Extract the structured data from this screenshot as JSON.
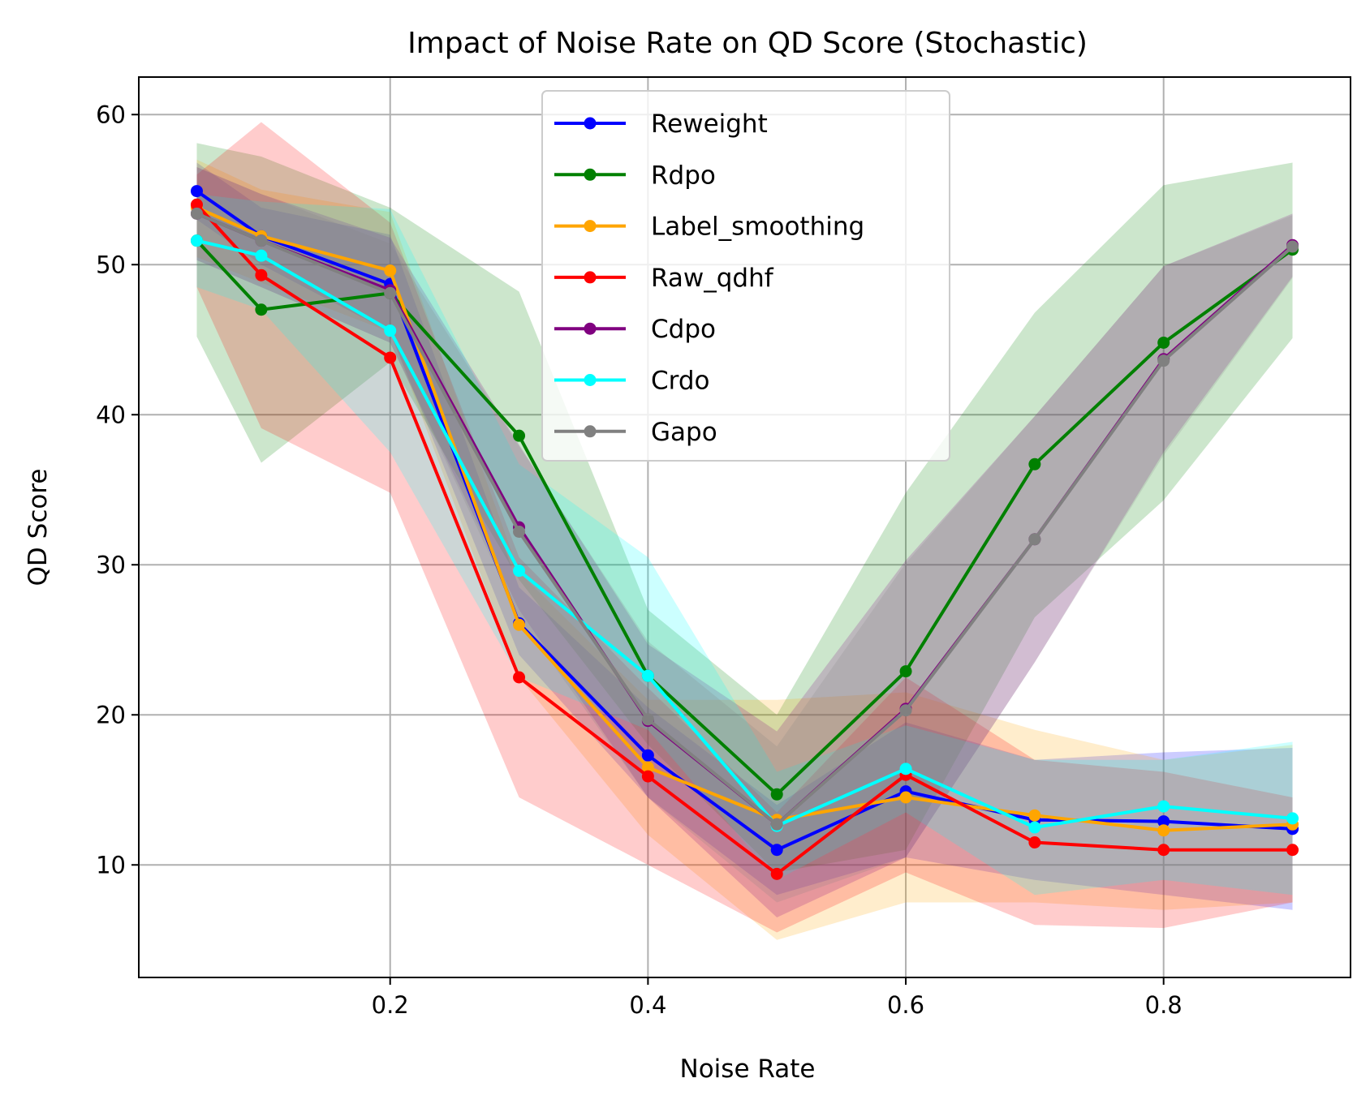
{
  "chart_data": {
    "type": "line",
    "title": "Impact of Noise Rate on QD Score (Stochastic)",
    "xlabel": "Noise Rate",
    "ylabel": "QD Score",
    "xlim": [
      0.005,
      0.945
    ],
    "ylim": [
      2.5,
      62.5
    ],
    "xticks": [
      0.2,
      0.4,
      0.6,
      0.8
    ],
    "xtick_labels": [
      "0.2",
      "0.4",
      "0.6",
      "0.8"
    ],
    "yticks": [
      10,
      20,
      30,
      40,
      50,
      60
    ],
    "ytick_labels": [
      "10",
      "20",
      "30",
      "40",
      "50",
      "60"
    ],
    "grid": true,
    "legend_position": "top-center",
    "x": [
      0.05,
      0.1,
      0.2,
      0.3,
      0.4,
      0.5,
      0.6,
      0.7,
      0.8,
      0.9
    ],
    "series": [
      {
        "name": "Reweight",
        "color": "#0000ff",
        "values": [
          54.9,
          51.9,
          48.7,
          26.1,
          17.3,
          11.0,
          14.9,
          13.0,
          12.9,
          12.4
        ],
        "lower": [
          53.0,
          50.0,
          45.5,
          24.0,
          14.5,
          8.0,
          10.5,
          9.0,
          8.0,
          7.0
        ],
        "upper": [
          56.8,
          53.8,
          52.0,
          28.5,
          20.5,
          14.0,
          19.5,
          17.0,
          17.5,
          17.8
        ]
      },
      {
        "name": "Rdpo",
        "color": "#008000",
        "values": [
          51.6,
          47.0,
          48.1,
          38.6,
          22.6,
          14.7,
          22.9,
          36.7,
          44.8,
          51.0
        ],
        "lower": [
          45.2,
          36.8,
          43.5,
          29.0,
          18.0,
          9.5,
          11.0,
          26.5,
          34.3,
          45.1
        ],
        "upper": [
          58.1,
          57.2,
          53.8,
          48.2,
          27.0,
          20.0,
          34.8,
          46.8,
          55.3,
          56.8
        ]
      },
      {
        "name": "Label_smoothing",
        "color": "#ffa500",
        "values": [
          53.8,
          51.9,
          49.6,
          26.0,
          16.5,
          13.0,
          14.5,
          13.3,
          12.3,
          12.7
        ],
        "lower": [
          50.5,
          48.8,
          45.5,
          22.5,
          12.0,
          5.0,
          7.5,
          7.5,
          7.0,
          7.5
        ],
        "upper": [
          57.0,
          55.0,
          53.5,
          29.5,
          21.0,
          21.0,
          21.5,
          19.0,
          17.0,
          18.0
        ]
      },
      {
        "name": "Raw_qdhf",
        "color": "#ff0000",
        "values": [
          54.0,
          49.3,
          43.8,
          22.5,
          15.9,
          9.4,
          16.0,
          11.5,
          11.0,
          11.0
        ],
        "lower": [
          48.5,
          39.1,
          34.8,
          14.5,
          10.0,
          5.5,
          9.5,
          6.0,
          5.8,
          7.5
        ],
        "upper": [
          56.0,
          59.5,
          52.8,
          30.5,
          21.8,
          13.5,
          22.5,
          17.0,
          16.2,
          14.5
        ]
      },
      {
        "name": "Cdpo",
        "color": "#800080",
        "values": [
          53.4,
          51.6,
          48.3,
          32.5,
          19.6,
          12.7,
          20.4,
          31.7,
          43.7,
          51.3
        ],
        "lower": [
          50.3,
          48.5,
          44.8,
          27.0,
          14.5,
          6.5,
          10.5,
          23.5,
          37.5,
          49.2
        ],
        "upper": [
          56.5,
          54.7,
          51.8,
          38.0,
          24.7,
          18.9,
          30.3,
          39.9,
          49.9,
          53.4
        ]
      },
      {
        "name": "Crdo",
        "color": "#00ffff",
        "values": [
          51.6,
          50.6,
          45.6,
          29.6,
          22.6,
          12.6,
          16.4,
          12.5,
          13.9,
          13.1
        ],
        "lower": [
          48.5,
          47.0,
          37.5,
          22.5,
          19.0,
          9.0,
          13.5,
          8.0,
          9.0,
          8.0
        ],
        "upper": [
          54.7,
          54.2,
          53.7,
          36.7,
          30.5,
          16.2,
          19.3,
          17.0,
          17.0,
          18.2
        ]
      },
      {
        "name": "Gapo",
        "color": "#808080",
        "values": [
          53.4,
          51.6,
          48.1,
          32.2,
          19.7,
          12.7,
          20.3,
          31.7,
          43.6,
          51.2
        ],
        "lower": [
          50.3,
          48.5,
          44.8,
          26.5,
          14.5,
          7.5,
          10.5,
          23.5,
          37.3,
          49.1
        ],
        "upper": [
          56.5,
          54.7,
          51.4,
          37.9,
          24.9,
          17.9,
          30.1,
          39.9,
          49.9,
          53.3
        ]
      }
    ]
  }
}
